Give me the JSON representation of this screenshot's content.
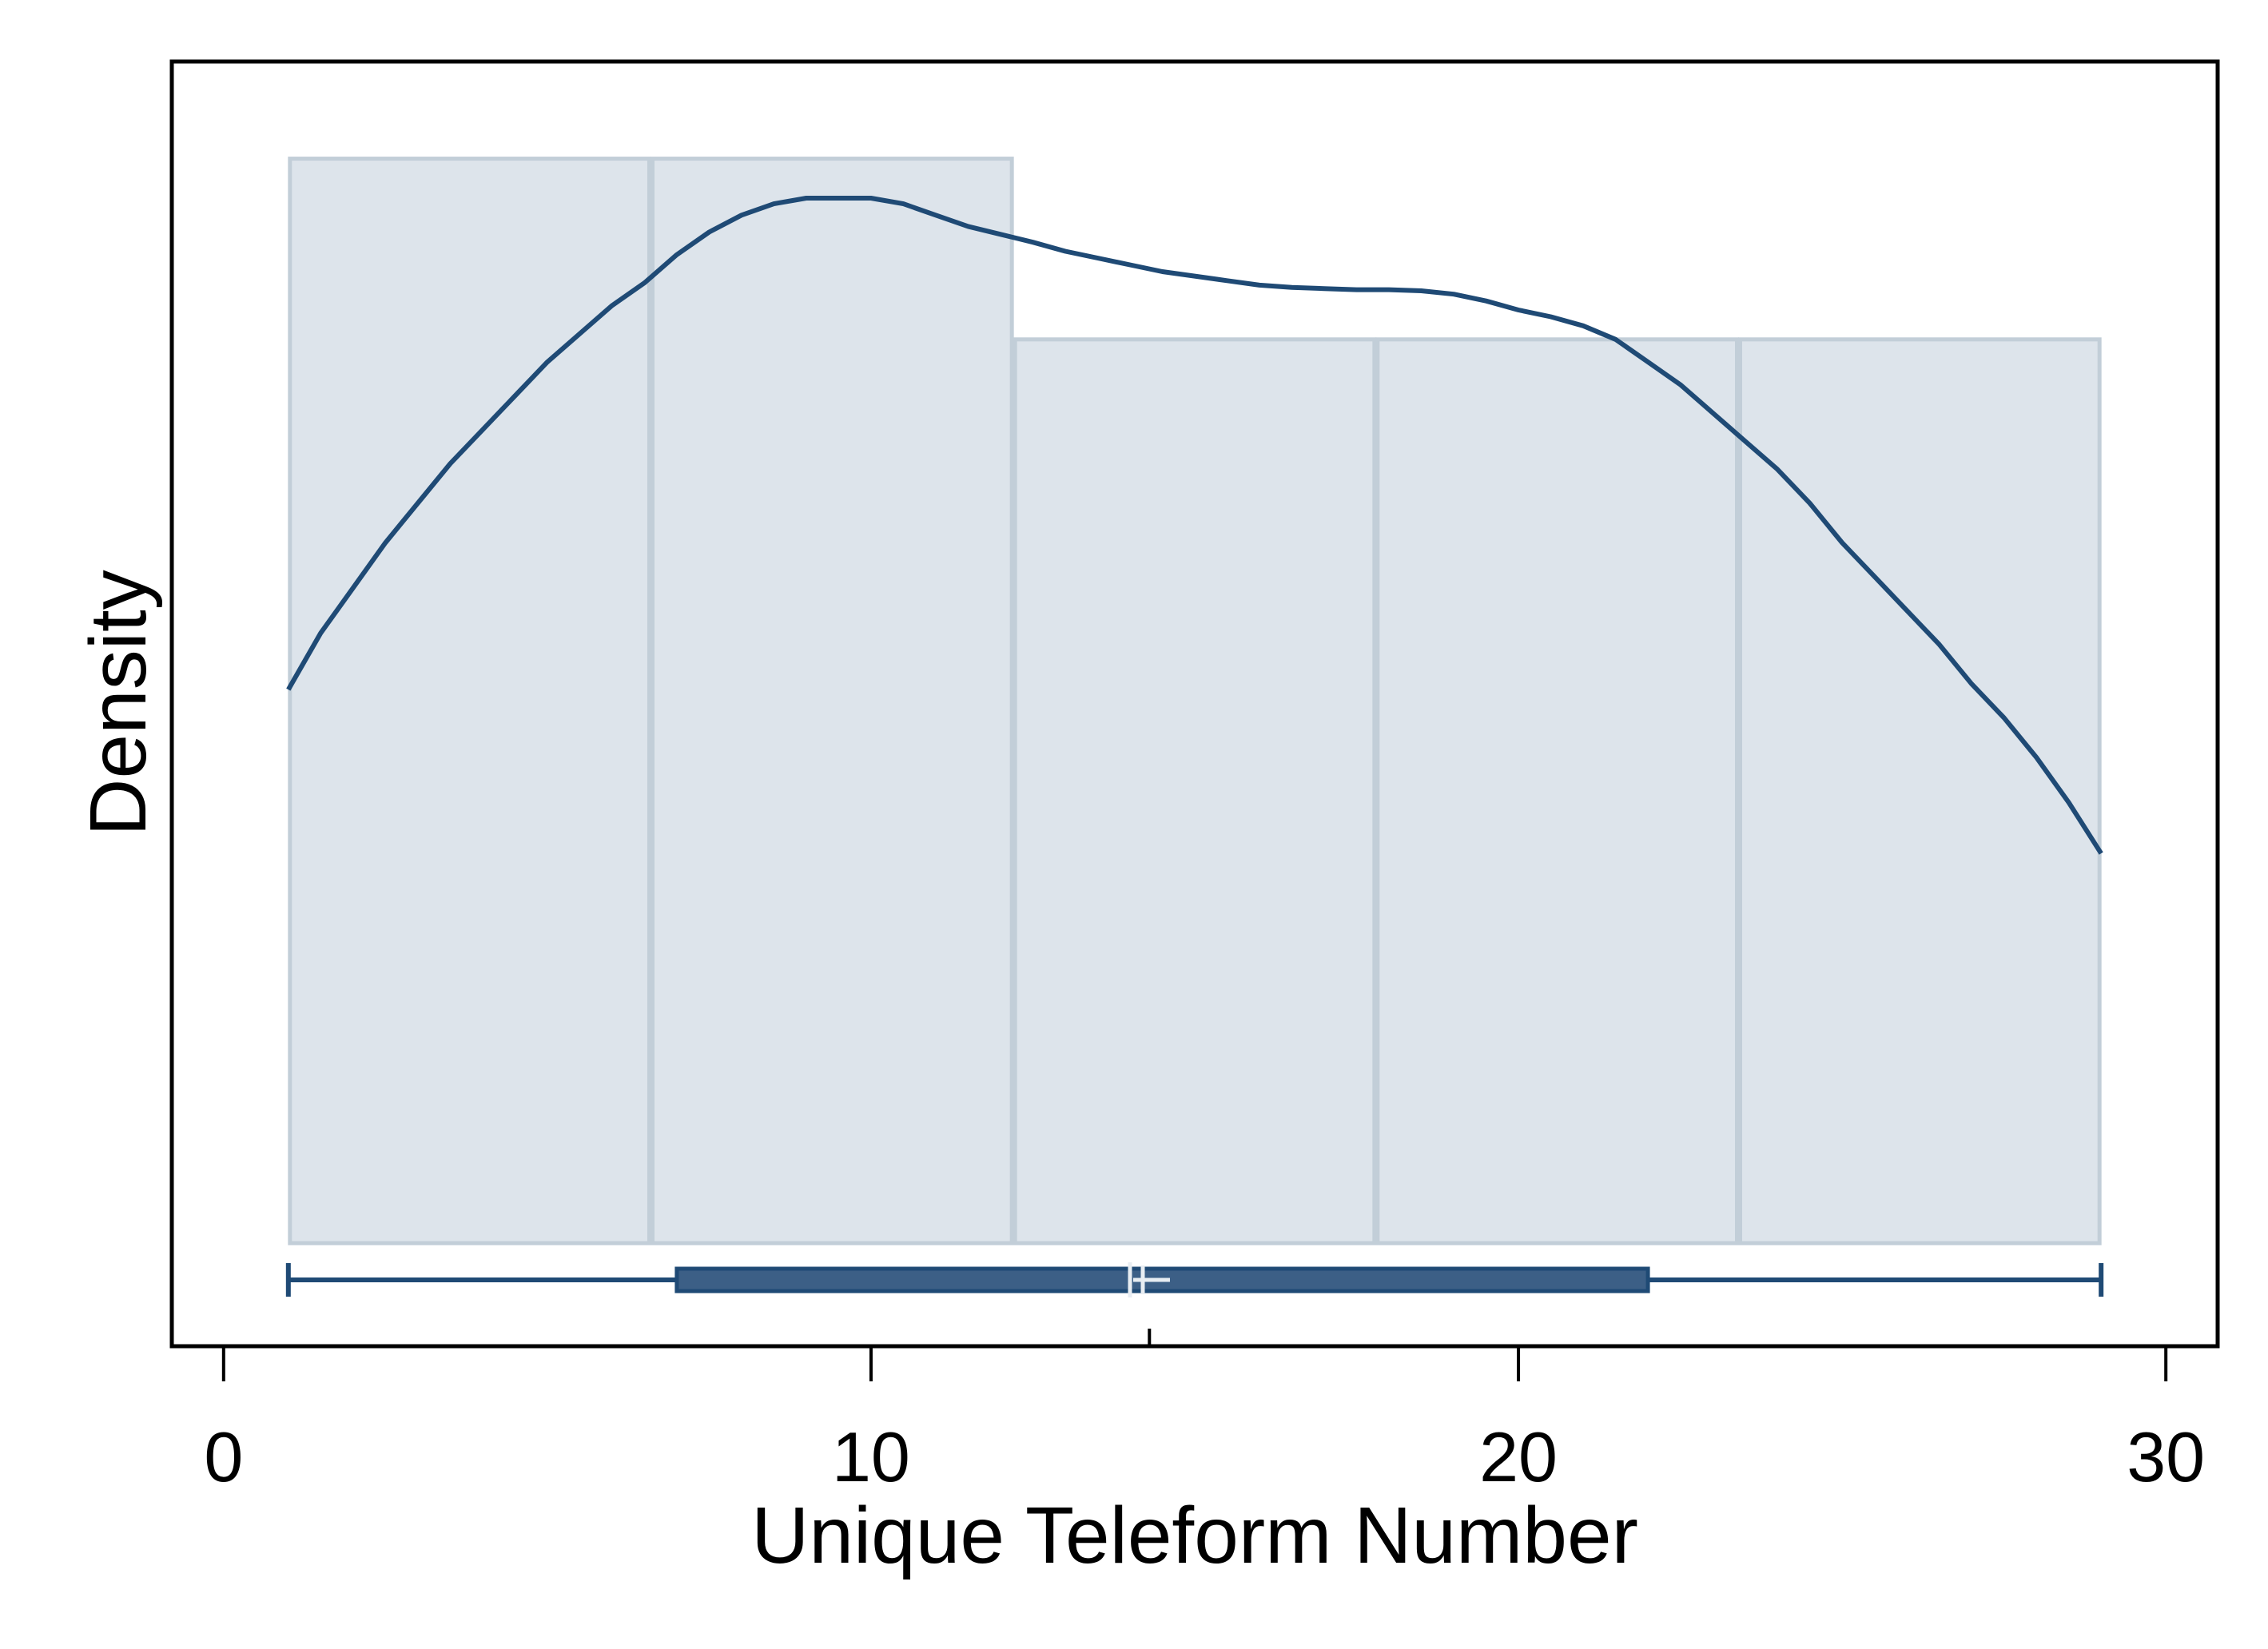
{
  "chart_data": {
    "type": "histogram",
    "title": "",
    "xlabel": "Unique Teleform Number",
    "ylabel": "Density",
    "xlim": [
      -0.8,
      30.8
    ],
    "ylim": [
      0,
      1
    ],
    "xticks": [
      0,
      10,
      20,
      30
    ],
    "xtick_labels": [
      "0",
      "10",
      "20",
      "30"
    ],
    "grid": false,
    "legend": "none",
    "histogram": {
      "bins": [
        {
          "x0": 1.0,
          "x1": 6.6,
          "density": 0.96
        },
        {
          "x0": 6.6,
          "x1": 12.2,
          "density": 0.96
        },
        {
          "x0": 12.2,
          "x1": 17.8,
          "density": 0.8
        },
        {
          "x0": 17.8,
          "x1": 23.4,
          "density": 0.8
        },
        {
          "x0": 23.4,
          "x1": 29.0,
          "density": 0.8
        }
      ]
    },
    "density_curve": {
      "x": [
        1,
        1.5,
        2,
        2.5,
        3,
        3.5,
        4,
        4.5,
        5,
        5.5,
        6,
        6.5,
        7,
        7.5,
        8,
        8.5,
        9,
        9.5,
        10,
        10.5,
        11,
        11.5,
        12,
        12.5,
        13,
        13.5,
        14,
        14.5,
        15,
        15.5,
        16,
        16.5,
        17,
        17.5,
        18,
        18.5,
        19,
        19.5,
        20,
        20.5,
        21,
        21.5,
        22,
        22.5,
        23,
        23.5,
        24,
        24.5,
        25,
        25.5,
        26,
        26.5,
        27,
        27.5,
        28,
        28.5,
        29
      ],
      "y": [
        0.49,
        0.54,
        0.58,
        0.62,
        0.655,
        0.69,
        0.72,
        0.75,
        0.78,
        0.805,
        0.83,
        0.85,
        0.875,
        0.895,
        0.91,
        0.92,
        0.925,
        0.925,
        0.925,
        0.92,
        0.91,
        0.9,
        0.893,
        0.886,
        0.878,
        0.872,
        0.866,
        0.86,
        0.856,
        0.852,
        0.848,
        0.846,
        0.845,
        0.844,
        0.844,
        0.843,
        0.84,
        0.834,
        0.826,
        0.82,
        0.812,
        0.8,
        0.78,
        0.76,
        0.735,
        0.71,
        0.685,
        0.655,
        0.62,
        0.59,
        0.56,
        0.53,
        0.495,
        0.465,
        0.43,
        0.39,
        0.345
      ]
    },
    "boxplot": {
      "min": 1,
      "q1": 7,
      "median": 14,
      "mean": 14.3,
      "q3": 22,
      "max": 29
    },
    "colors": {
      "bar_fill": "#dde4eb",
      "bar_stroke": "#c2ced8",
      "curve": "#1f4a75",
      "box_fill": "#3c5f86",
      "box_stroke": "#1f4a75",
      "median_marker": "#e8edf2"
    }
  }
}
